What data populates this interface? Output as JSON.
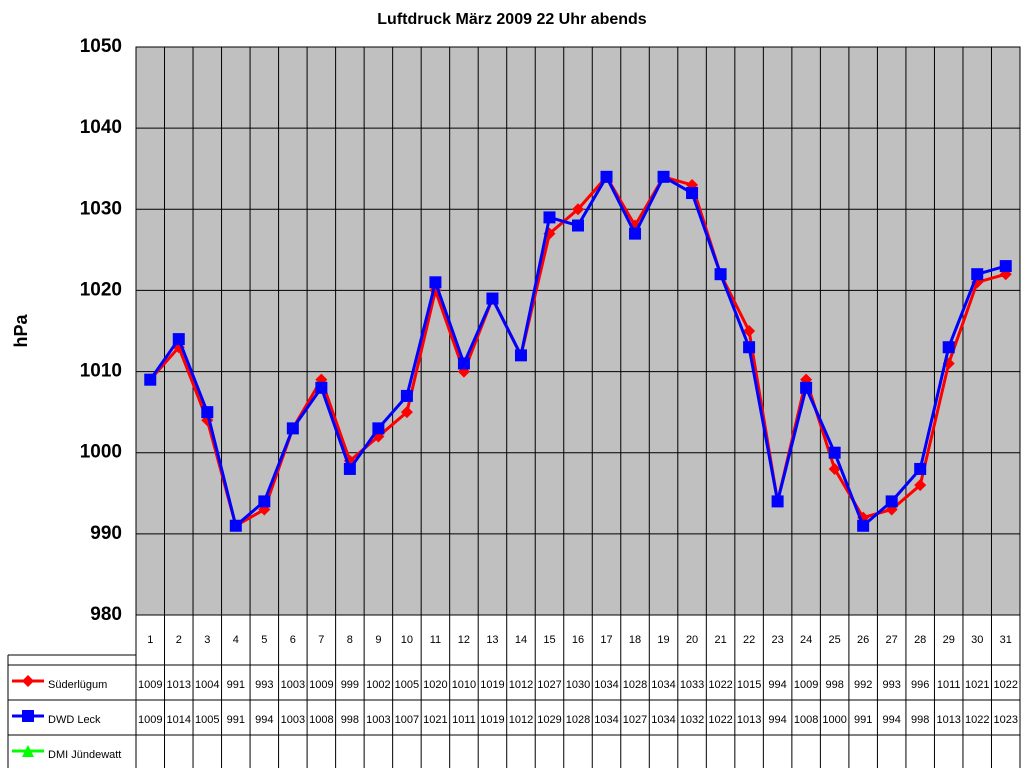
{
  "chart_data": {
    "type": "line",
    "title": "Luftdruck März 2009 22 Uhr abends",
    "y_label": "hPa",
    "categories": [
      "1",
      "2",
      "3",
      "4",
      "5",
      "6",
      "7",
      "8",
      "9",
      "10",
      "11",
      "12",
      "13",
      "14",
      "15",
      "16",
      "17",
      "18",
      "19",
      "20",
      "21",
      "22",
      "23",
      "24",
      "25",
      "26",
      "27",
      "28",
      "29",
      "30",
      "31"
    ],
    "ylim": [
      980,
      1050
    ],
    "yticks": [
      980,
      990,
      1000,
      1010,
      1020,
      1030,
      1040,
      1050
    ],
    "grid": true,
    "series": [
      {
        "name": "Süderlügum",
        "color": "#ff0000",
        "marker": "diamond",
        "values": [
          1009,
          1013,
          1004,
          991,
          993,
          1003,
          1009,
          999,
          1002,
          1005,
          1020,
          1010,
          1019,
          1012,
          1027,
          1030,
          1034,
          1028,
          1034,
          1033,
          1022,
          1015,
          994,
          1009,
          998,
          992,
          993,
          996,
          1011,
          1021,
          1022
        ]
      },
      {
        "name": "DWD Leck",
        "color": "#0000ff",
        "marker": "square",
        "values": [
          1009,
          1014,
          1005,
          991,
          994,
          1003,
          1008,
          998,
          1003,
          1007,
          1021,
          1011,
          1019,
          1012,
          1029,
          1028,
          1034,
          1027,
          1034,
          1032,
          1022,
          1013,
          994,
          1008,
          1000,
          991,
          994,
          998,
          1013,
          1022,
          1023
        ]
      },
      {
        "name": "DMI Jündewatt",
        "color": "#00ff00",
        "marker": "triangle",
        "values": [
          null,
          null,
          null,
          null,
          null,
          null,
          null,
          null,
          null,
          null,
          null,
          null,
          null,
          null,
          null,
          null,
          null,
          null,
          null,
          null,
          null,
          null,
          null,
          null,
          null,
          null,
          null,
          null,
          null,
          null,
          null
        ]
      }
    ]
  }
}
